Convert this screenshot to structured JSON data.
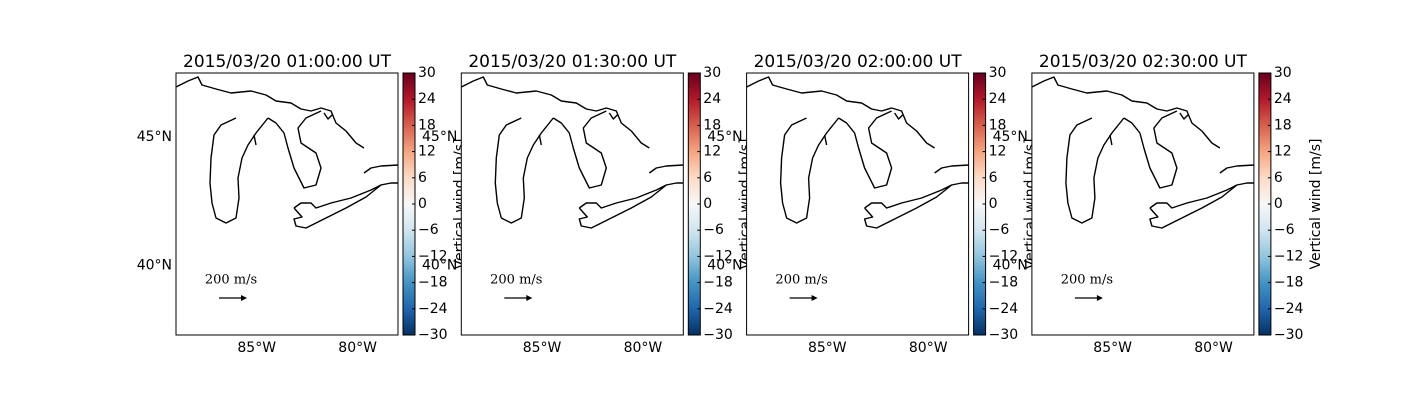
{
  "chart_data": {
    "type": "map",
    "panels": [
      {
        "title": "2015/03/20 01:00:00 UT"
      },
      {
        "title": "2015/03/20 01:30:00 UT"
      },
      {
        "title": "2015/03/20 02:00:00 UT"
      },
      {
        "title": "2015/03/20 02:30:00 UT"
      }
    ],
    "xlim": [
      -89,
      -78
    ],
    "ylim": [
      37.3,
      47.5
    ],
    "xticks": [
      {
        "value": -85,
        "label": "85°W"
      },
      {
        "value": -80,
        "label": "80°W"
      }
    ],
    "yticks": [
      {
        "value": 40,
        "label": "40°N"
      },
      {
        "value": 45,
        "label": "45°N"
      }
    ],
    "colorbar": {
      "label": "Vertical wind [m/s]",
      "lim": [
        -30,
        30
      ],
      "ticks": [
        {
          "value": -30,
          "label": "−30"
        },
        {
          "value": -24,
          "label": "−24"
        },
        {
          "value": -18,
          "label": "−18"
        },
        {
          "value": -12,
          "label": "−12"
        },
        {
          "value": -6,
          "label": "−6"
        },
        0,
        6,
        12,
        18,
        24,
        30
      ],
      "colors": [
        "#053061",
        "#2166ac",
        "#4393c3",
        "#92c5de",
        "#d1e5f0",
        "#f7f7f7",
        "#fddbc7",
        "#f4a582",
        "#d6604d",
        "#b2182b",
        "#67001f"
      ]
    },
    "quiver_key": {
      "label": "200 m/s"
    }
  }
}
